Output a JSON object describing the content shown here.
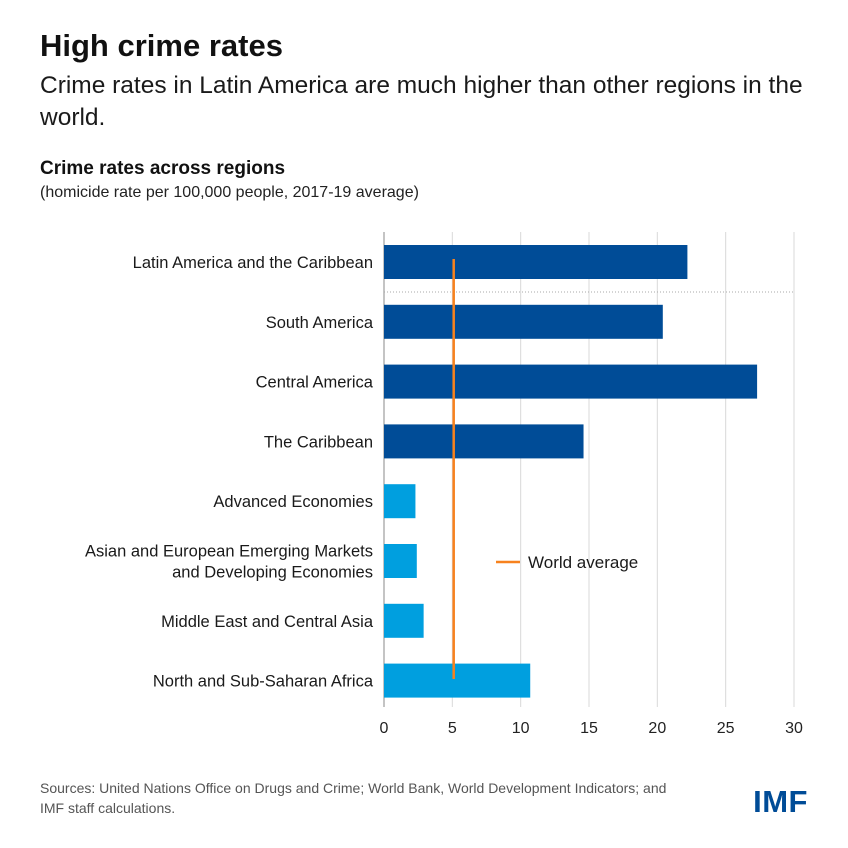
{
  "header": {
    "title": "High crime rates",
    "subtitle": "Crime rates in Latin America are much higher than other regions in the world."
  },
  "chart_data": {
    "type": "bar",
    "orientation": "horizontal",
    "title": "Crime rates across regions",
    "subtitle": "(homicide rate per 100,000 people, 2017-19 average)",
    "categories": [
      [
        "Latin America and the Caribbean"
      ],
      [
        "South America"
      ],
      [
        "Central America"
      ],
      [
        "The Caribbean"
      ],
      [
        "Advanced Economies"
      ],
      [
        "Asian and European Emerging Markets",
        "and Developing Economies"
      ],
      [
        "Middle East and Central Asia"
      ],
      [
        "North and Sub-Saharan Africa"
      ]
    ],
    "values": [
      22.2,
      20.4,
      27.3,
      14.6,
      2.3,
      2.4,
      2.9,
      10.7
    ],
    "bar_colors": [
      "#004c97",
      "#004c97",
      "#004c97",
      "#004c97",
      "#009fdf",
      "#009fdf",
      "#009fdf",
      "#009fdf"
    ],
    "xlim": [
      0,
      30
    ],
    "xticks": [
      0,
      5,
      10,
      15,
      20,
      25,
      30
    ],
    "grid": true,
    "reference_line": {
      "label": "World average",
      "value": 5.1,
      "color": "#f7821e"
    },
    "legend_position": "center-right"
  },
  "footer": {
    "source": "Sources: United Nations Office on Drugs and Crime; World Bank, World Development Indicators; and IMF staff calculations.",
    "logo": "IMF"
  }
}
